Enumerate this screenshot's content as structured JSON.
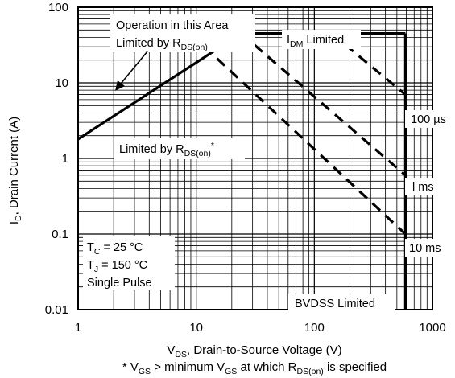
{
  "chart_data": {
    "type": "line",
    "x_scale": "log",
    "y_scale": "log",
    "xlim": [
      1,
      1000
    ],
    "ylim": [
      0.01,
      100
    ],
    "grid": true,
    "x_ticks": [
      "1",
      "10",
      "100",
      "1000"
    ],
    "y_ticks": [
      "100",
      "10",
      "1",
      "0.1",
      "0.01"
    ],
    "xlabel": {
      "main": "V",
      "sub": "DS",
      "rest": ", Drain-to-Source Voltage (V)"
    },
    "ylabel": {
      "main": "I",
      "sub": "D",
      "rest": ", Drain Current (A)"
    },
    "footnote": {
      "p1": "* V",
      "s1": "GS",
      "p2": " > minimum V",
      "s2": "GS",
      "p3": " at which R",
      "s3": "DS(on)",
      "p4": " is specified"
    },
    "series": [
      {
        "name": "",
        "style": "solid",
        "points": [
          [
            1,
            1.8
          ],
          [
            24,
            45
          ]
        ]
      },
      {
        "name": "",
        "style": "solid",
        "points": [
          [
            24,
            45
          ],
          [
            590,
            45
          ]
        ]
      },
      {
        "name": "",
        "style": "solid",
        "points": [
          [
            590,
            45
          ],
          [
            590,
            0.01
          ]
        ]
      },
      {
        "name": "100 µs",
        "style": "dashed",
        "points": [
          [
            140,
            45
          ],
          [
            590,
            7
          ]
        ]
      },
      {
        "name": "l ms",
        "style": "dashed",
        "points": [
          [
            24,
            45
          ],
          [
            590,
            0.6
          ]
        ]
      },
      {
        "name": "10 ms",
        "style": "dashed",
        "points": [
          [
            15,
            21
          ],
          [
            590,
            0.1
          ]
        ]
      }
    ],
    "annotations": {
      "operation_area": {
        "line1": "Operation in this Area",
        "line2_main": "Limited by R",
        "line2_sub": "DS(on)"
      },
      "idm": {
        "main": "I",
        "sub": "DM",
        "rest": " Limited"
      },
      "rds_star": {
        "main": "Limited by R",
        "sub": "DS(on)",
        "sup": "*"
      },
      "bvdss": "BVDSS Limited",
      "conditions": {
        "tc_main": "T",
        "tc_sub": "C",
        "tc_rest": " = 25 °C",
        "tj_main": "T",
        "tj_sub": "J",
        "tj_rest": " = 150 °C",
        "pulse": "Single Pulse"
      },
      "label_100us": "100 µs",
      "label_1ms": "l ms",
      "label_10ms": "10 ms"
    }
  }
}
